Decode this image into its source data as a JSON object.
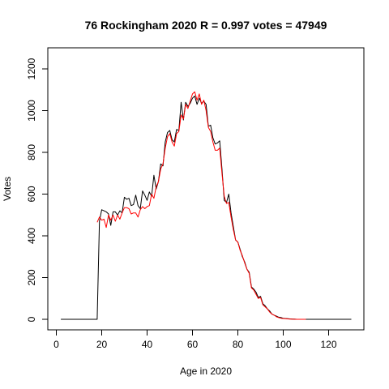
{
  "chart_data": {
    "type": "line",
    "title": "76 Rockingham 2020 R = 0.997 votes = 47949",
    "xlabel": "Age in 2020",
    "ylabel": "Votes",
    "xlim": [
      0,
      130
    ],
    "ylim": [
      0,
      1300
    ],
    "xticks": [
      0,
      20,
      40,
      60,
      80,
      100,
      120
    ],
    "yticks": [
      0,
      200,
      400,
      600,
      800,
      1000,
      1200
    ],
    "grid": false,
    "legend": "none",
    "series": [
      {
        "color": "#000000",
        "x": [
          2,
          18,
          19,
          20,
          21,
          22,
          23,
          24,
          25,
          26,
          27,
          28,
          29,
          30,
          31,
          32,
          33,
          34,
          35,
          36,
          37,
          38,
          39,
          40,
          41,
          42,
          43,
          44,
          45,
          46,
          47,
          48,
          49,
          50,
          51,
          52,
          53,
          54,
          55,
          56,
          57,
          58,
          59,
          60,
          61,
          62,
          63,
          64,
          65,
          66,
          67,
          68,
          69,
          70,
          71,
          72,
          73,
          74,
          75,
          76,
          77,
          78,
          79,
          80,
          81,
          82,
          83,
          84,
          85,
          86,
          87,
          88,
          89,
          90,
          91,
          92,
          93,
          94,
          95,
          96,
          97,
          98,
          99,
          100,
          101,
          102,
          103,
          104,
          105,
          106,
          107,
          108,
          109,
          110,
          111,
          112,
          113,
          114,
          115,
          116,
          117,
          118,
          119,
          120,
          121,
          122,
          123,
          124,
          125,
          126,
          127,
          128,
          129,
          130
        ],
        "y": [
          0,
          0,
          470,
          525,
          520,
          515,
          505,
          450,
          515,
          515,
          500,
          520,
          510,
          585,
          575,
          580,
          545,
          550,
          595,
          545,
          530,
          615,
          595,
          570,
          610,
          590,
          690,
          625,
          660,
          745,
          735,
          850,
          895,
          905,
          860,
          850,
          910,
          905,
          1040,
          955,
          1040,
          1020,
          1035,
          1060,
          1070,
          1030,
          1060,
          1035,
          1045,
          1030,
          925,
          930,
          870,
          840,
          845,
          855,
          720,
          570,
          560,
          600,
          510,
          445,
          380,
          370,
          335,
          300,
          275,
          240,
          225,
          155,
          145,
          130,
          105,
          110,
          75,
          65,
          50,
          40,
          25,
          20,
          15,
          10,
          8,
          5,
          4,
          3,
          2,
          1,
          1,
          0,
          0,
          0,
          0,
          0,
          0,
          0,
          0,
          0,
          0,
          0,
          0,
          0,
          0,
          0,
          0,
          0,
          0,
          0,
          0,
          0,
          0,
          0,
          0,
          0
        ]
      },
      {
        "color": "#ff0000",
        "x": [
          18,
          19,
          20,
          21,
          22,
          23,
          24,
          25,
          26,
          27,
          28,
          29,
          30,
          31,
          32,
          33,
          34,
          35,
          36,
          37,
          38,
          39,
          40,
          41,
          42,
          43,
          44,
          45,
          46,
          47,
          48,
          49,
          50,
          51,
          52,
          53,
          54,
          55,
          56,
          57,
          58,
          59,
          60,
          61,
          62,
          63,
          64,
          65,
          66,
          67,
          68,
          69,
          70,
          71,
          72,
          73,
          74,
          75,
          76,
          77,
          78,
          79,
          80,
          81,
          82,
          83,
          84,
          85,
          86,
          87,
          88,
          89,
          90,
          91,
          92,
          93,
          94,
          95,
          96,
          97,
          98,
          99,
          100,
          101,
          102,
          103,
          104,
          105,
          106,
          107,
          108,
          109,
          110
        ],
        "y": [
          465,
          490,
          475,
          480,
          440,
          500,
          475,
          500,
          470,
          500,
          480,
          510,
          535,
          535,
          530,
          505,
          510,
          510,
          490,
          525,
          540,
          530,
          540,
          545,
          600,
          580,
          635,
          660,
          720,
          745,
          820,
          875,
          890,
          850,
          830,
          890,
          900,
          980,
          960,
          1030,
          1010,
          1045,
          1080,
          1090,
          1050,
          1080,
          1030,
          1050,
          1000,
          920,
          900,
          850,
          810,
          810,
          820,
          700,
          590,
          555,
          560,
          490,
          430,
          380,
          370,
          330,
          305,
          270,
          240,
          220,
          150,
          140,
          120,
          100,
          105,
          70,
          60,
          50,
          35,
          25,
          20,
          12,
          8,
          5,
          4,
          3,
          2,
          1,
          1,
          0,
          0,
          0,
          0,
          0,
          0
        ]
      }
    ]
  }
}
